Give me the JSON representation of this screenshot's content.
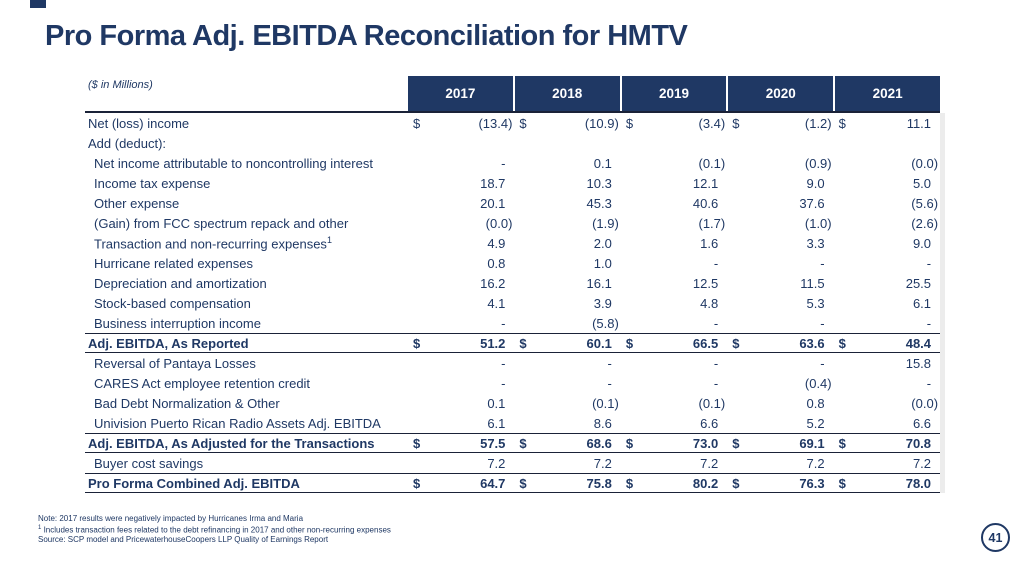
{
  "slide": {
    "title": "Pro Forma Adj. EBITDA Reconciliation for HMTV",
    "units_label": "($ in Millions)",
    "page_number": "41"
  },
  "colors": {
    "navy_accent": "#1f3864",
    "header_bg": "#1f3864",
    "header_text": "#ffffff",
    "rule_line": "#1a2238",
    "right_strip": "#ececec"
  },
  "table": {
    "currency_symbol": "$",
    "years": [
      "2017",
      "2018",
      "2019",
      "2020",
      "2021"
    ],
    "rows": [
      {
        "label": "Net (loss) income",
        "dollar": true,
        "indent": 0,
        "style": "normal",
        "values": [
          "(13.4)",
          "(10.9)",
          "(3.4)",
          "(1.2)",
          "11.1"
        ]
      },
      {
        "label": "Add (deduct):",
        "dollar": false,
        "indent": 0,
        "style": "normal",
        "values": [
          "",
          "",
          "",
          "",
          ""
        ]
      },
      {
        "label": "Net income attributable to noncontrolling interest",
        "dollar": false,
        "indent": 1,
        "style": "normal",
        "values": [
          "-",
          "0.1",
          "(0.1)",
          "(0.9)",
          "(0.0)"
        ]
      },
      {
        "label": "Income tax expense",
        "dollar": false,
        "indent": 1,
        "style": "normal",
        "values": [
          "18.7",
          "10.3",
          "12.1",
          "9.0",
          "5.0"
        ]
      },
      {
        "label": "Other expense",
        "dollar": false,
        "indent": 1,
        "style": "normal",
        "values": [
          "20.1",
          "45.3",
          "40.6",
          "37.6",
          "(5.6)"
        ]
      },
      {
        "label": "(Gain) from FCC spectrum repack and other",
        "dollar": false,
        "indent": 1,
        "style": "normal",
        "values": [
          "(0.0)",
          "(1.9)",
          "(1.7)",
          "(1.0)",
          "(2.6)"
        ]
      },
      {
        "label": "Transaction and non-recurring expenses",
        "sup": "1",
        "dollar": false,
        "indent": 1,
        "style": "normal",
        "values": [
          "4.9",
          "2.0",
          "1.6",
          "3.3",
          "9.0"
        ]
      },
      {
        "label": "Hurricane related expenses",
        "dollar": false,
        "indent": 1,
        "style": "normal",
        "values": [
          "0.8",
          "1.0",
          "-",
          "-",
          "-"
        ]
      },
      {
        "label": "Depreciation and amortization",
        "dollar": false,
        "indent": 1,
        "style": "normal",
        "values": [
          "16.2",
          "16.1",
          "12.5",
          "11.5",
          "25.5"
        ]
      },
      {
        "label": "Stock-based compensation",
        "dollar": false,
        "indent": 1,
        "style": "normal",
        "values": [
          "4.1",
          "3.9",
          "4.8",
          "5.3",
          "6.1"
        ]
      },
      {
        "label": "Business interruption income",
        "dollar": false,
        "indent": 1,
        "style": "normal",
        "values": [
          "-",
          "(5.8)",
          "-",
          "-",
          "-"
        ]
      },
      {
        "label": "Adj. EBITDA, As Reported",
        "dollar": true,
        "indent": 0,
        "style": "total",
        "values": [
          "51.2",
          "60.1",
          "66.5",
          "63.6",
          "48.4"
        ]
      },
      {
        "label": "Reversal of Pantaya Losses",
        "dollar": false,
        "indent": 1,
        "style": "normal",
        "values": [
          "-",
          "-",
          "-",
          "-",
          "15.8"
        ]
      },
      {
        "label": "CARES Act employee retention credit",
        "dollar": false,
        "indent": 1,
        "style": "normal",
        "values": [
          "-",
          "-",
          "-",
          "(0.4)",
          "-"
        ]
      },
      {
        "label": "Bad Debt Normalization & Other",
        "dollar": false,
        "indent": 1,
        "style": "normal",
        "values": [
          "0.1",
          "(0.1)",
          "(0.1)",
          "0.8",
          "(0.0)"
        ]
      },
      {
        "label": "Univision Puerto Rican Radio Assets Adj. EBITDA",
        "dollar": false,
        "indent": 1,
        "style": "normal",
        "values": [
          "6.1",
          "8.6",
          "6.6",
          "5.2",
          "6.6"
        ]
      },
      {
        "label": "Adj. EBITDA, As Adjusted for the Transactions",
        "dollar": true,
        "indent": 0,
        "style": "total",
        "values": [
          "57.5",
          "68.6",
          "73.0",
          "69.1",
          "70.8"
        ]
      },
      {
        "label": "Buyer cost savings",
        "dollar": false,
        "indent": 1,
        "style": "normal",
        "values": [
          "7.2",
          "7.2",
          "7.2",
          "7.2",
          "7.2"
        ]
      },
      {
        "label": "Pro Forma Combined Adj. EBITDA",
        "dollar": true,
        "indent": 0,
        "style": "total",
        "values": [
          "64.7",
          "75.8",
          "80.2",
          "76.3",
          "78.0"
        ]
      }
    ]
  },
  "footnotes": [
    {
      "text": "Note: 2017 results were negatively impacted by Hurricanes Irma and Maria"
    },
    {
      "sup": "1",
      "text": " Includes transaction fees related to the debt refinancing in 2017 and other non-recurring expenses"
    },
    {
      "text": "Source: SCP model and PricewaterhouseCoopers LLP Quality of Earnings Report"
    }
  ]
}
